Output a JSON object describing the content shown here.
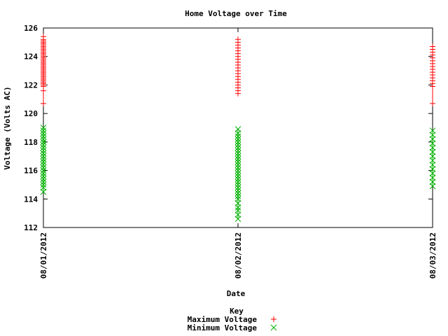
{
  "chart_data": {
    "type": "scatter",
    "title": "Home Voltage over Time",
    "xlabel": "Date",
    "ylabel": "Voltage (Volts AC)",
    "ylim": [
      112,
      126
    ],
    "yticks": [
      "112",
      "114",
      "116",
      "118",
      "120",
      "122",
      "124",
      "126"
    ],
    "xticks": [
      "08/01/2012",
      "08/02/2012",
      "08/03/2012"
    ],
    "grid": false,
    "legend": {
      "title": "Key",
      "placement": "bottom-center"
    },
    "series": [
      {
        "name": "Maximum Voltage",
        "marker": "plus",
        "color": "#ff0000",
        "groups": [
          {
            "x": "08/01/2012",
            "y": [
              120.7,
              121.6,
              121.9,
              122.0,
              122.1,
              122.2,
              122.3,
              122.4,
              122.5,
              122.6,
              122.7,
              122.8,
              122.9,
              123.0,
              123.1,
              123.2,
              123.3,
              123.4,
              123.5,
              123.6,
              123.7,
              123.8,
              123.9,
              124.0,
              124.1,
              124.2,
              124.3,
              124.4,
              124.5,
              124.6,
              124.7,
              124.8,
              124.9,
              125.0,
              125.1,
              125.2,
              125.4
            ]
          },
          {
            "x": "08/02/2012",
            "y": [
              121.4,
              121.6,
              121.8,
              122.0,
              122.2,
              122.4,
              122.6,
              122.8,
              123.0,
              123.2,
              123.4,
              123.6,
              123.8,
              124.0,
              124.2,
              124.4,
              124.6,
              124.8,
              125.0,
              125.2
            ]
          },
          {
            "x": "08/03/2012",
            "y": [
              120.7,
              121.9,
              122.1,
              122.3,
              122.5,
              122.7,
              122.9,
              123.1,
              123.3,
              123.5,
              123.7,
              123.9,
              124.1,
              124.3,
              124.5,
              124.7
            ]
          }
        ]
      },
      {
        "name": "Minimum Voltage",
        "marker": "cross",
        "color": "#00b000",
        "groups": [
          {
            "x": "08/01/2012",
            "y": [
              114.5,
              114.8,
              115.0,
              115.2,
              115.4,
              115.6,
              115.8,
              116.0,
              116.2,
              116.4,
              116.6,
              116.8,
              117.0,
              117.2,
              117.4,
              117.6,
              117.8,
              118.0,
              118.2,
              118.4,
              118.6,
              118.8,
              119.0
            ]
          },
          {
            "x": "08/02/2012",
            "y": [
              112.6,
              112.9,
              113.2,
              113.4,
              113.7,
              114.0,
              114.2,
              114.4,
              114.6,
              114.8,
              115.0,
              115.2,
              115.4,
              115.6,
              115.8,
              116.0,
              116.2,
              116.4,
              116.6,
              116.8,
              117.0,
              117.2,
              117.4,
              117.6,
              117.8,
              118.0,
              118.2,
              118.4,
              118.6,
              118.9
            ]
          },
          {
            "x": "08/03/2012",
            "y": [
              114.9,
              115.2,
              115.5,
              115.8,
              116.1,
              116.4,
              116.7,
              117.0,
              117.3,
              117.6,
              117.9,
              118.2,
              118.5,
              118.8
            ]
          }
        ]
      }
    ]
  }
}
